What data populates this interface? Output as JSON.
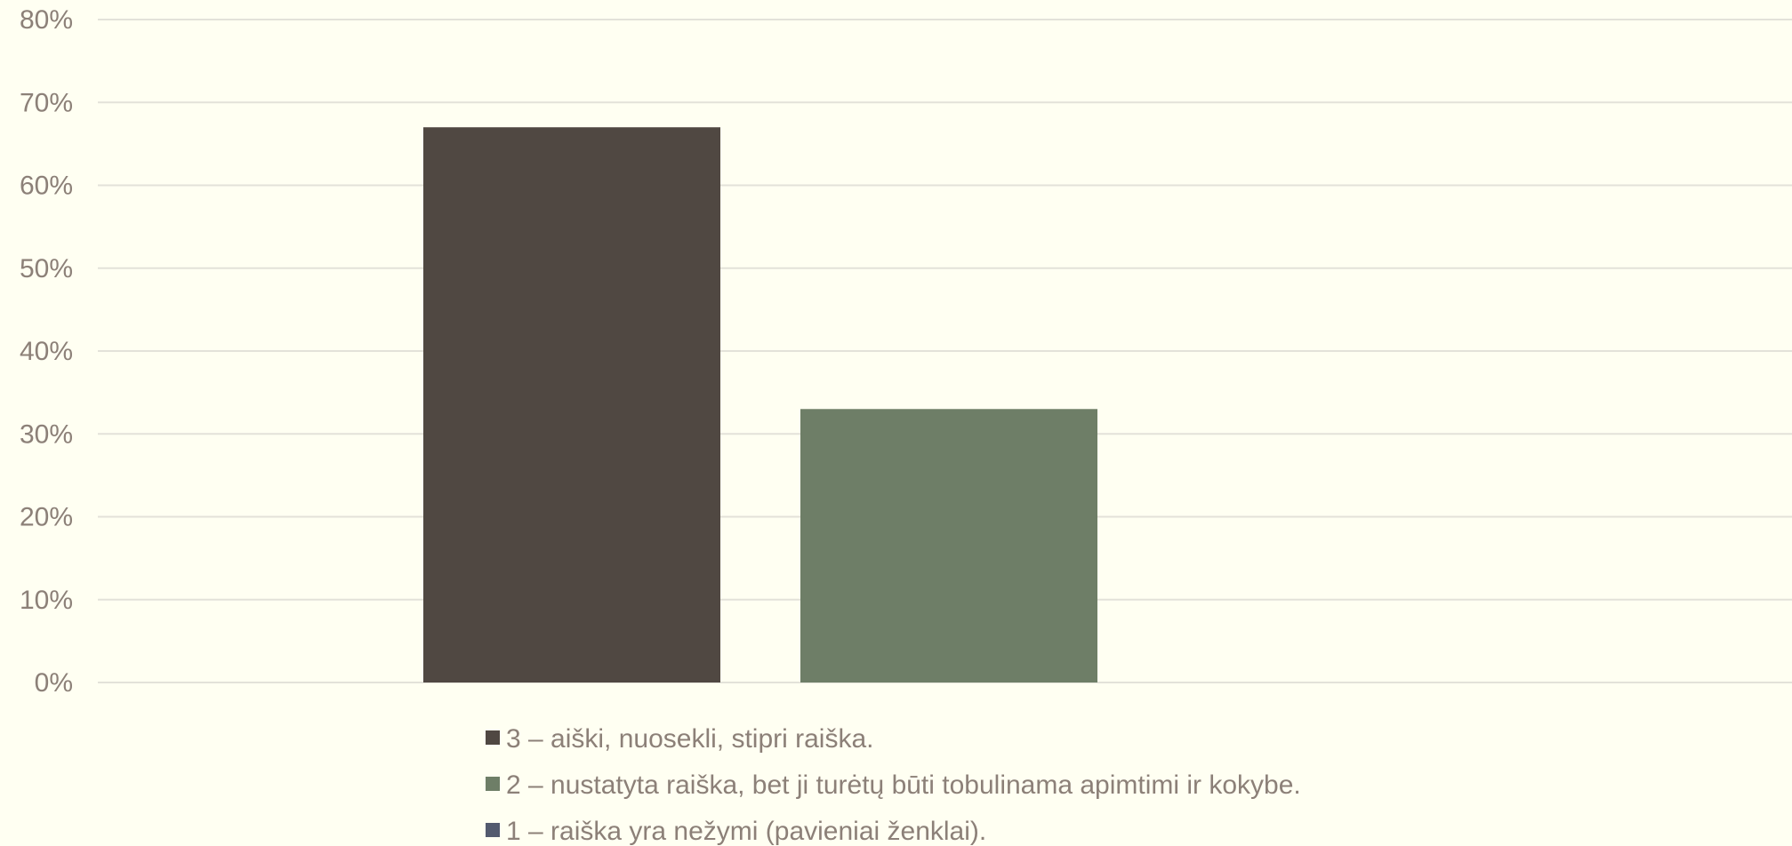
{
  "chart_data": {
    "type": "bar",
    "title": "",
    "xlabel": "",
    "ylabel": "",
    "ylim": [
      0,
      80
    ],
    "yticks": [
      "0%",
      "10%",
      "20%",
      "30%",
      "40%",
      "50%",
      "60%",
      "70%",
      "80%"
    ],
    "grid": true,
    "legend_position": "bottom",
    "series": [
      {
        "name": "3 – aiški, nuosekli, stipri raiška.",
        "value": 67,
        "color": "#504842"
      },
      {
        "name": "2 – nustatyta raiška, bet ji turėtų būti tobulinama apimtimi ir kokybe.",
        "value": 33,
        "color": "#6e7e67"
      },
      {
        "name": "1 – raiška yra nežymi (pavieniai ženklai).",
        "value": 0,
        "color": "#535a6e"
      }
    ]
  }
}
